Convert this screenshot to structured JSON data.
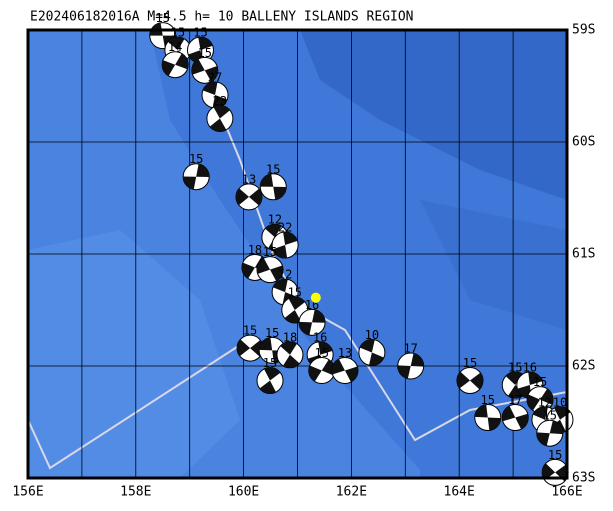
{
  "map": {
    "title": "E202406182016A M=4.5 h= 10 BALLENY ISLANDS REGION",
    "xlim": [
      156,
      166
    ],
    "ylim": [
      -59,
      -63
    ],
    "xticks": [
      {
        "value": 156,
        "label": "156E"
      },
      {
        "value": 158,
        "label": "158E"
      },
      {
        "value": 160,
        "label": "160E"
      },
      {
        "value": 162,
        "label": "162E"
      },
      {
        "value": 164,
        "label": "164E"
      },
      {
        "value": 166,
        "label": "166E"
      }
    ],
    "yticks": [
      {
        "value": -59,
        "label": "59S"
      },
      {
        "value": -60,
        "label": "60S"
      },
      {
        "value": -61,
        "label": "61S"
      },
      {
        "value": -62,
        "label": "62S"
      },
      {
        "value": -63,
        "label": "63S"
      }
    ],
    "main_event": {
      "lon": 161.34,
      "lat": -61.39
    },
    "events": [
      {
        "lon": 158.5,
        "lat": -59.05,
        "label": "15"
      },
      {
        "lon": 158.78,
        "lat": -59.18,
        "label": "15"
      },
      {
        "lon": 159.2,
        "lat": -59.18,
        "label": "15"
      },
      {
        "lon": 158.73,
        "lat": -59.31,
        "label": "14"
      },
      {
        "lon": 159.28,
        "lat": -59.36,
        "label": "15"
      },
      {
        "lon": 159.47,
        "lat": -59.58,
        "label": "27"
      },
      {
        "lon": 159.56,
        "lat": -59.79,
        "label": "23"
      },
      {
        "lon": 159.12,
        "lat": -60.31,
        "label": "15"
      },
      {
        "lon": 160.1,
        "lat": -60.49,
        "label": "13"
      },
      {
        "lon": 160.55,
        "lat": -60.4,
        "label": "15"
      },
      {
        "lon": 160.58,
        "lat": -60.85,
        "label": "12"
      },
      {
        "lon": 160.77,
        "lat": -60.92,
        "label": "22"
      },
      {
        "lon": 160.21,
        "lat": -61.12,
        "label": "18"
      },
      {
        "lon": 160.49,
        "lat": -61.14,
        "label": "15"
      },
      {
        "lon": 160.77,
        "lat": -61.34,
        "label": "12"
      },
      {
        "lon": 160.95,
        "lat": -61.5,
        "label": "15"
      },
      {
        "lon": 161.27,
        "lat": -61.61,
        "label": "16"
      },
      {
        "lon": 160.12,
        "lat": -61.84,
        "label": "15"
      },
      {
        "lon": 160.53,
        "lat": -61.86,
        "label": "15"
      },
      {
        "lon": 160.86,
        "lat": -61.9,
        "label": "18"
      },
      {
        "lon": 161.42,
        "lat": -61.9,
        "label": "16"
      },
      {
        "lon": 161.45,
        "lat": -62.04,
        "label": "15"
      },
      {
        "lon": 161.88,
        "lat": -62.04,
        "label": "13"
      },
      {
        "lon": 162.38,
        "lat": -61.88,
        "label": "10"
      },
      {
        "lon": 160.49,
        "lat": -62.13,
        "label": "15"
      },
      {
        "lon": 163.1,
        "lat": -62.0,
        "label": "17"
      },
      {
        "lon": 164.2,
        "lat": -62.13,
        "label": "15"
      },
      {
        "lon": 164.53,
        "lat": -62.46,
        "label": "15"
      },
      {
        "lon": 165.04,
        "lat": -62.17,
        "label": "15"
      },
      {
        "lon": 165.31,
        "lat": -62.17,
        "label": "16"
      },
      {
        "lon": 165.5,
        "lat": -62.3,
        "label": "15"
      },
      {
        "lon": 165.04,
        "lat": -62.46,
        "label": "17"
      },
      {
        "lon": 165.59,
        "lat": -62.48,
        "label": "12"
      },
      {
        "lon": 165.87,
        "lat": -62.48,
        "label": "10"
      },
      {
        "lon": 165.68,
        "lat": -62.6,
        "label": "15"
      },
      {
        "lon": 165.78,
        "lat": -62.95,
        "label": "15"
      }
    ]
  }
}
